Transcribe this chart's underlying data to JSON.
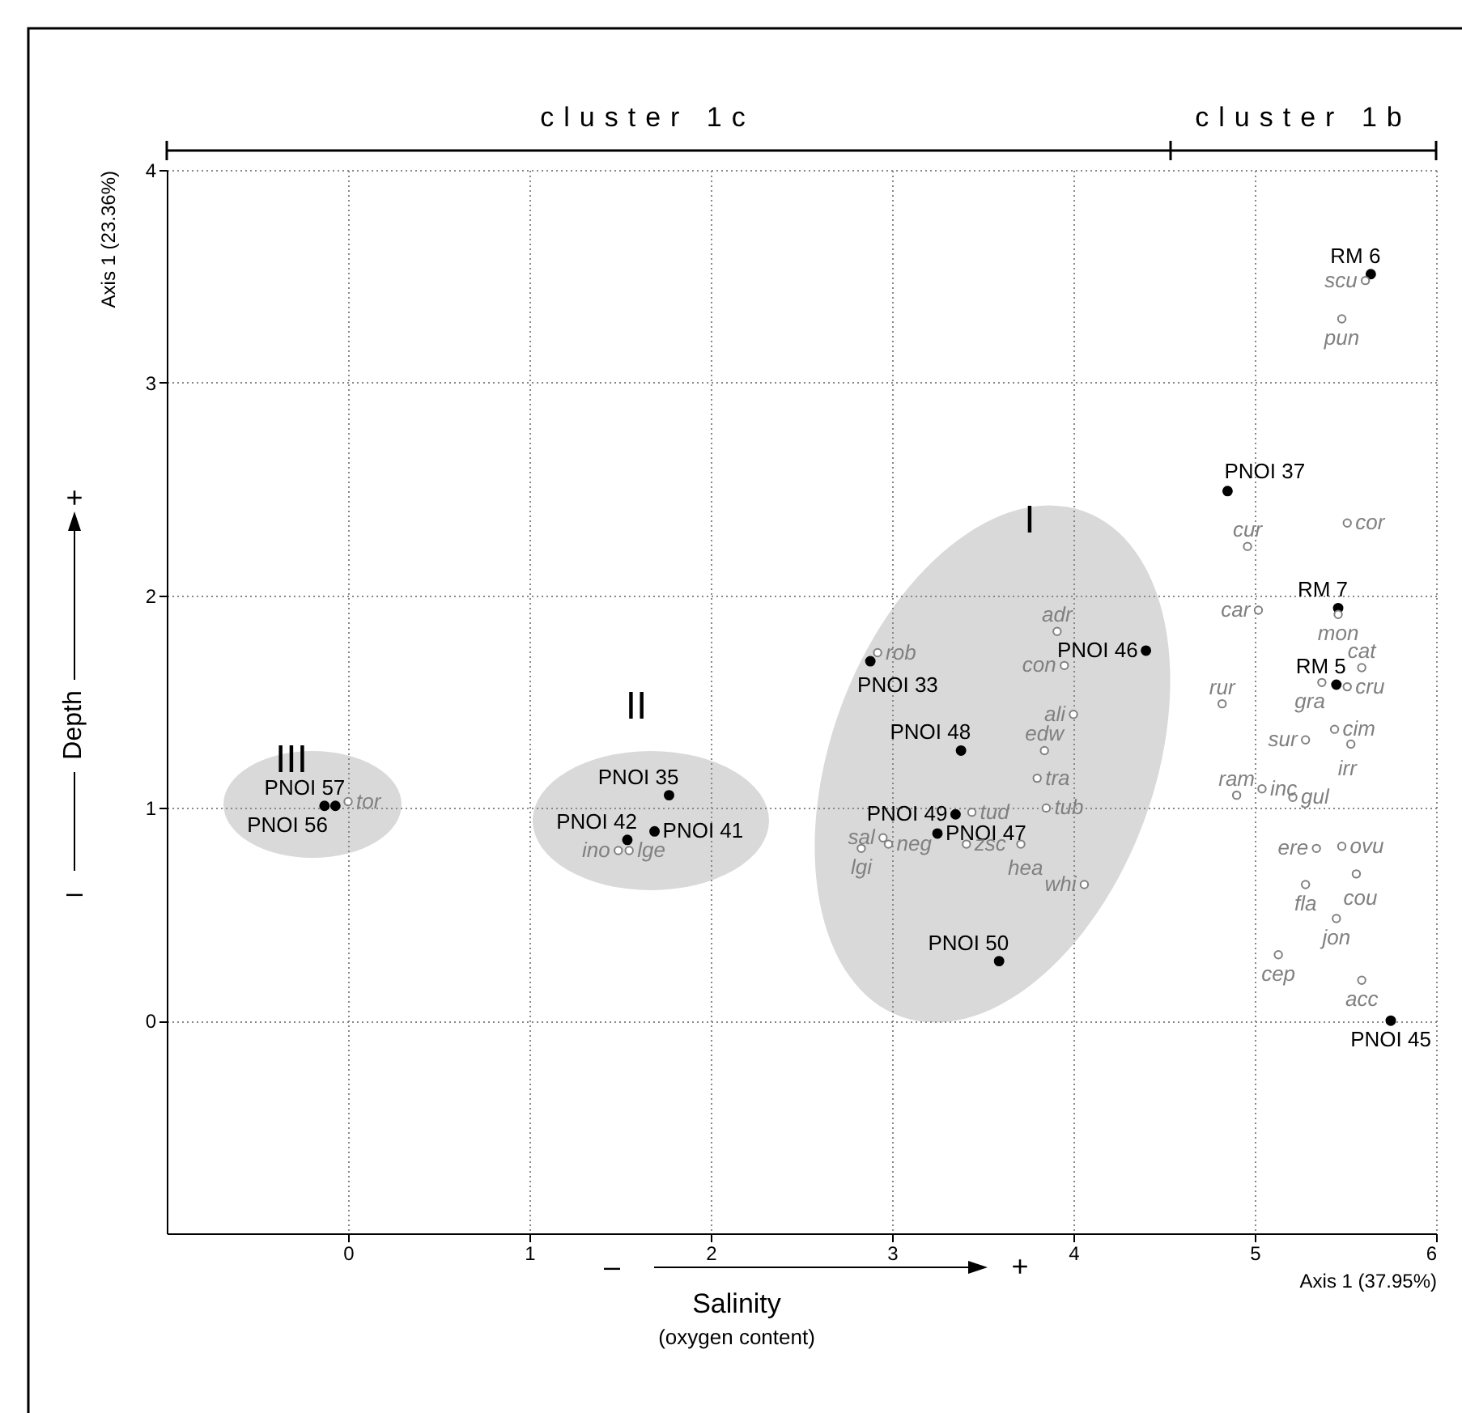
{
  "chart_data": {
    "type": "scatter",
    "xlabel": "Axis 1  (37.95%)",
    "ylabel": "Axis 1  (23.36%)",
    "annotations": [
      "cluster 1c",
      "cluster 1b",
      "+",
      "Depth",
      "–",
      "–",
      "+",
      "Salinity",
      "(oxygen content)",
      "I",
      "II",
      "III"
    ],
    "series": [
      {
        "color": "#000000",
        "x": [
          -0.07,
          -0.13,
          1.77,
          1.69,
          1.54,
          2.88,
          4.4,
          3.38,
          3.35,
          3.25,
          3.59,
          5.64,
          4.85,
          5.46,
          5.45,
          5.75
        ],
        "values": [
          1.01,
          1.01,
          1.06,
          0.89,
          0.85,
          1.69,
          1.74,
          1.27,
          0.97,
          0.88,
          0.28,
          3.51,
          2.49,
          1.94,
          1.58,
          0.0
        ],
        "value_labels": [
          "PNOI 57",
          "PNOI 56",
          "PNOI 35",
          "PNOI 41",
          "PNOI 42",
          "PNOI 33",
          "PNOI 46",
          "PNOI 48",
          "PNOI 49",
          "PNOI 47",
          "PNOI 50",
          "RM 6",
          "PNOI 37",
          "RM 7",
          "RM 5",
          "PNOI 45"
        ]
      },
      {
        "color": "#808080",
        "x": [
          0.0,
          1.49,
          1.55,
          2.92,
          3.91,
          3.95,
          4.0,
          3.84,
          3.8,
          3.85,
          3.44,
          3.41,
          3.71,
          4.06,
          2.83,
          2.95,
          2.98,
          5.61,
          5.48,
          4.96,
          5.51,
          5.02,
          5.46,
          5.59,
          5.37,
          5.51,
          4.82,
          5.28,
          5.44,
          5.53,
          4.9,
          5.04,
          5.21,
          5.34,
          5.48,
          5.56,
          5.28,
          5.45,
          5.13,
          5.59
        ],
        "values": [
          1.03,
          0.8,
          0.8,
          1.73,
          1.83,
          1.67,
          1.44,
          1.27,
          1.14,
          1.0,
          0.98,
          0.83,
          0.83,
          0.64,
          0.81,
          0.86,
          0.83,
          3.48,
          3.3,
          2.23,
          2.34,
          1.93,
          1.91,
          1.66,
          1.59,
          1.57,
          1.49,
          1.32,
          1.37,
          1.3,
          1.06,
          1.09,
          1.05,
          0.81,
          0.82,
          0.69,
          0.64,
          0.48,
          0.31,
          0.19
        ],
        "value_labels": [
          "tor",
          "ino",
          "lge",
          "rob",
          "adr",
          "con",
          "ali",
          "edw",
          "tra",
          "tub",
          "tud",
          "zsc",
          "hea",
          "whi",
          "lgi",
          "sal",
          "neg",
          "scu",
          "pun",
          "cur",
          "cor",
          "car",
          "mon",
          "cat",
          "gra",
          "cru",
          "rur",
          "sur",
          "cim",
          "irr",
          "ram",
          "inc",
          "gul",
          "ere",
          "ovu",
          "cou",
          "fla",
          "jon",
          "cep",
          "acc"
        ]
      }
    ],
    "xlim": [
      -1,
      6
    ],
    "ylim": [
      -1,
      4
    ],
    "xticks": [
      0,
      1,
      2,
      3,
      4,
      5,
      6
    ],
    "yticks": [
      0,
      1,
      2,
      3,
      4
    ],
    "grid": true,
    "marker": "circle"
  }
}
